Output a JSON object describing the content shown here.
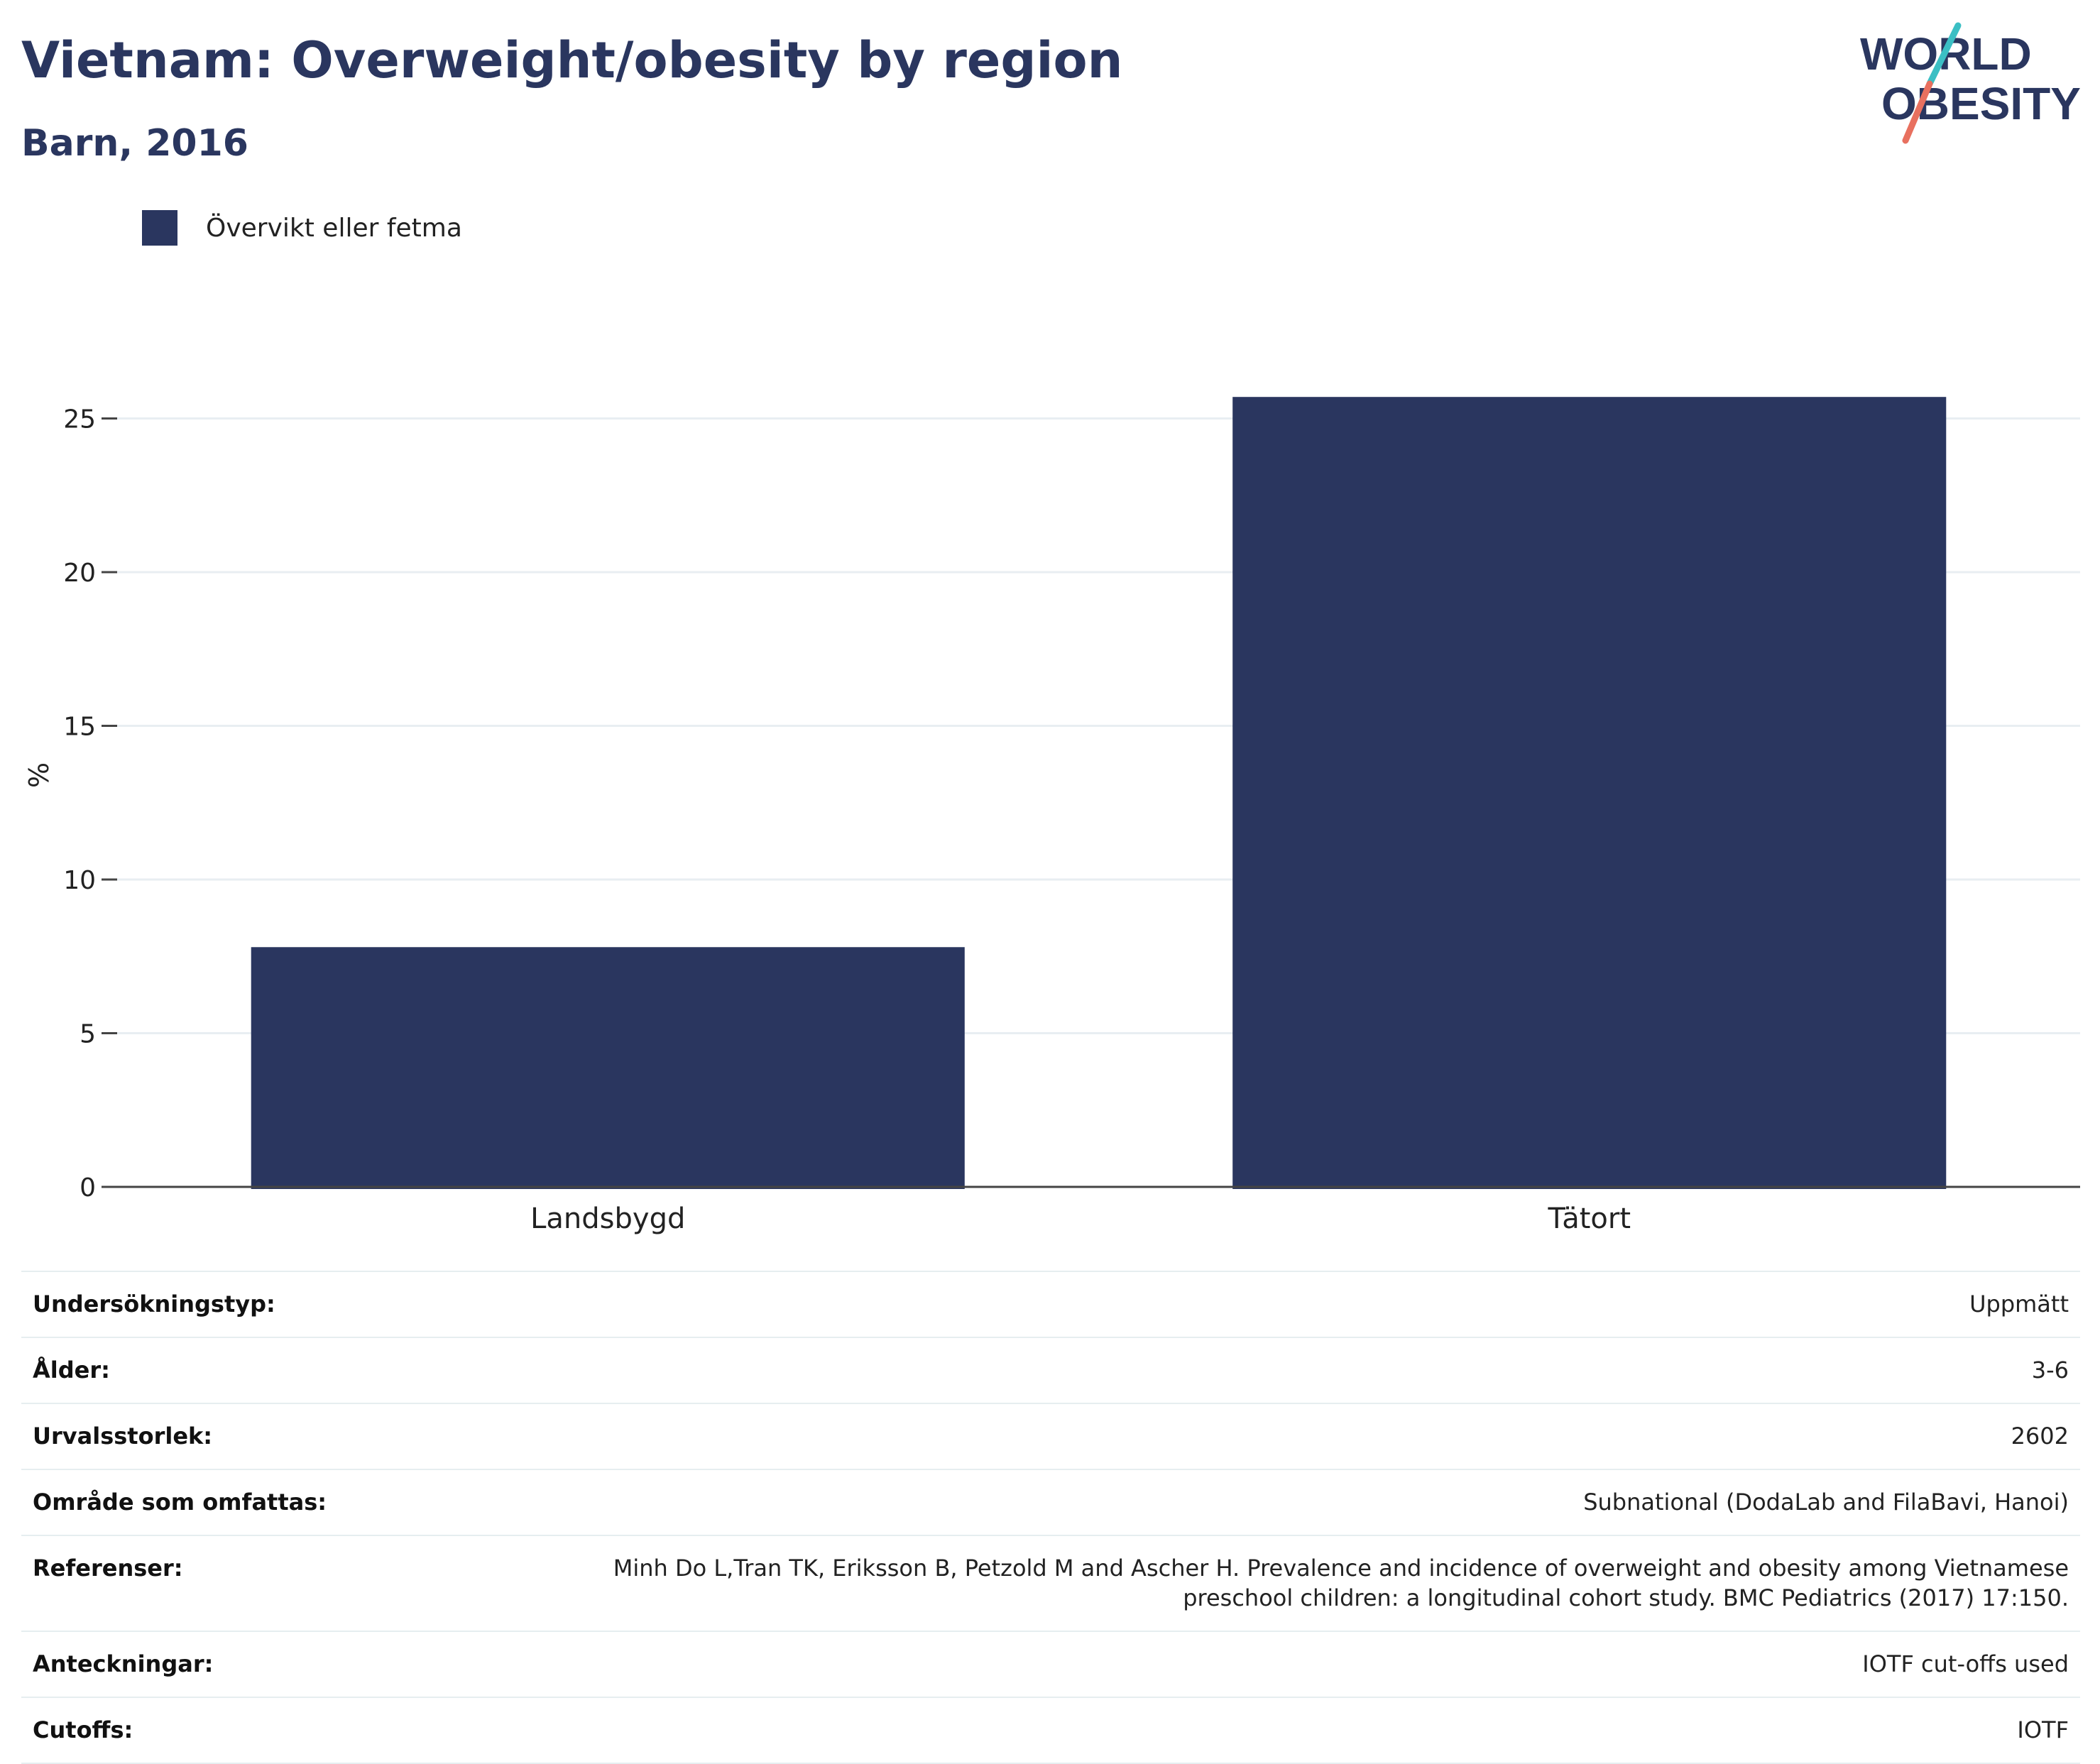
{
  "header": {
    "title": "Vietnam: Overweight/obesity by region",
    "subtitle": "Barn, 2016"
  },
  "logo": {
    "line1": "WORLD",
    "line2": "OBESITY",
    "colors": {
      "text": "#2a365f",
      "slash_top": "#3bbfc4",
      "slash_bottom": "#e8705f"
    }
  },
  "legend": {
    "label": "Övervikt eller fetma",
    "color": "#2a365f"
  },
  "chart_data": {
    "type": "bar",
    "categories": [
      "Landsbygd",
      "Tätort"
    ],
    "series": [
      {
        "name": "Övervikt eller fetma",
        "values": [
          7.8,
          25.7
        ],
        "color": "#2a365f"
      }
    ],
    "xlabel": "",
    "ylabel": "%",
    "ylim": [
      0,
      27
    ],
    "yticks": [
      0,
      5,
      10,
      15,
      20,
      25
    ],
    "grid": true,
    "legend_position": "top-left"
  },
  "details": {
    "rows": [
      {
        "key": "Undersökningstyp:",
        "value": "Uppmätt"
      },
      {
        "key": "Ålder:",
        "value": "3-6"
      },
      {
        "key": "Urvalsstorlek:",
        "value": "2602"
      },
      {
        "key": "Område som omfattas:",
        "value": "Subnational (DodaLab and FilaBavi, Hanoi)"
      },
      {
        "key": "Referenser:",
        "value_lines": [
          "Minh Do L,Tran TK, Eriksson B, Petzold M and Ascher H. Prevalence and incidence of overweight and obesity among Vietnamese",
          "preschool children: a longitudinal cohort study. BMC Pediatrics (2017) 17:150."
        ]
      },
      {
        "key": "Anteckningar:",
        "value": "IOTF cut-offs used"
      },
      {
        "key": "Cutoffs:",
        "value": "IOTF"
      }
    ]
  }
}
